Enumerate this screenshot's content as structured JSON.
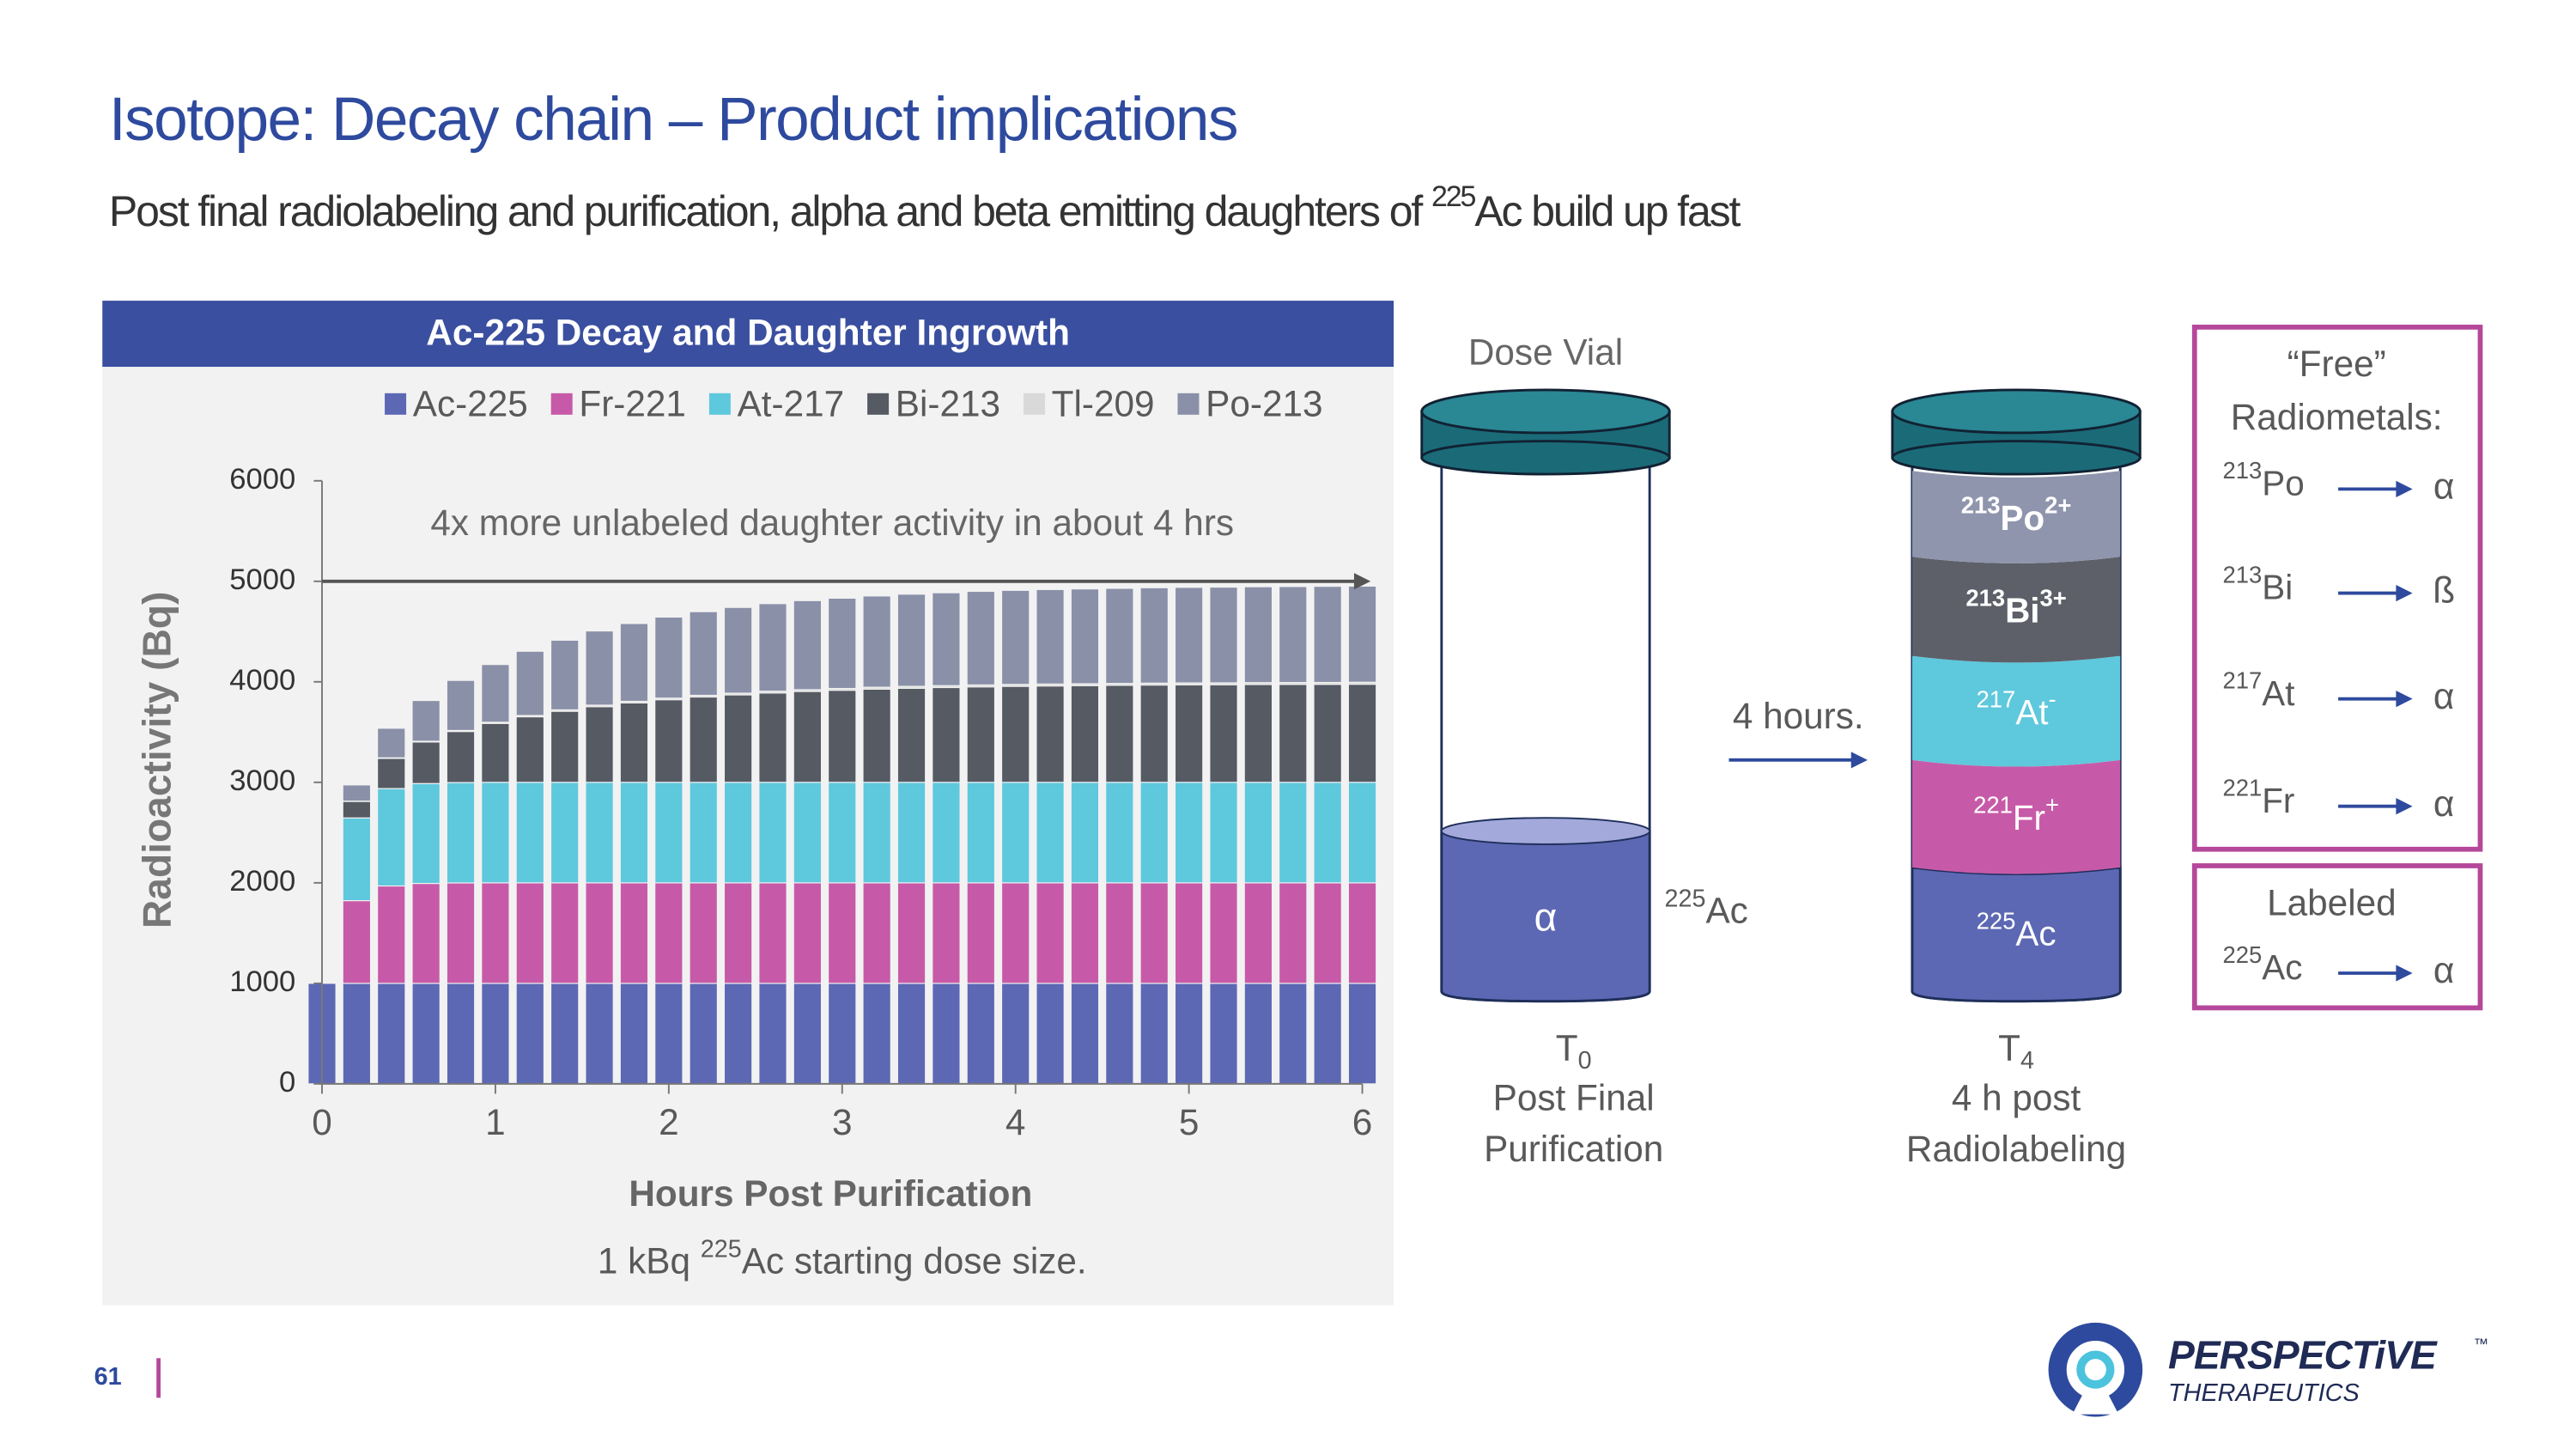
{
  "header": {
    "title": "Isotope: Decay chain – Product implications",
    "subtitle": {
      "text": "Post final radiolabeling and purification, alpha and beta emitting daughters of ",
      "sup": "225",
      "text_after": "Ac build up fast"
    }
  },
  "chart_data": {
    "type": "bar",
    "stacked": true,
    "title": "Ac-225 Decay and Daughter Ingrowth",
    "xlabel": "Hours Post Purification",
    "ylabel": "Radioactivity (Bq)",
    "annotation": "4x more unlabeled daughter activity in about 4 hrs",
    "footnote": {
      "text": "1 kBq ",
      "sup": "225",
      "text_after": "Ac starting dose size."
    },
    "x": [
      0,
      0.2,
      0.4,
      0.6,
      0.8,
      1,
      1.2,
      1.4,
      1.6,
      1.8,
      2,
      2.2,
      2.4,
      2.6,
      2.8,
      3,
      3.2,
      3.4,
      3.6,
      3.8,
      4,
      4.2,
      4.4,
      4.6,
      4.8,
      5,
      5.2,
      5.4,
      5.6,
      5.8,
      6
    ],
    "xlim": [
      0,
      6
    ],
    "xticks": [
      0,
      1,
      2,
      3,
      4,
      5,
      6
    ],
    "ylim": [
      0,
      6000
    ],
    "yticks": [
      0,
      1000,
      2000,
      3000,
      4000,
      5000,
      6000
    ],
    "legend": "top",
    "series": [
      {
        "name": "Ac-225",
        "color": "#5c68b4",
        "values": [
          1000,
          1000,
          1000,
          1000,
          1000,
          1000,
          1000,
          1000,
          1000,
          1000,
          1000,
          1000,
          1000,
          1000,
          1000,
          1000,
          1000,
          1000,
          1000,
          1000,
          1000,
          1000,
          1000,
          1000,
          1000,
          1000,
          1000,
          1000,
          1000,
          1000,
          1000
        ]
      },
      {
        "name": "Fr-221",
        "color": "#c75aa8",
        "values": [
          0,
          823,
          969,
          994,
          999,
          1000,
          1000,
          1000,
          1000,
          1000,
          1000,
          1000,
          1000,
          1000,
          1000,
          1000,
          1000,
          1000,
          1000,
          1000,
          1000,
          1000,
          1000,
          1000,
          1000,
          1000,
          1000,
          1000,
          1000,
          1000,
          1000
        ]
      },
      {
        "name": "At-217",
        "color": "#5ec8dd",
        "values": [
          0,
          823,
          969,
          994,
          999,
          1000,
          1000,
          1000,
          1000,
          1000,
          1000,
          1000,
          1000,
          1000,
          1000,
          1000,
          1000,
          1000,
          1000,
          1000,
          1000,
          1000,
          1000,
          1000,
          1000,
          1000,
          1000,
          1000,
          1000,
          1000,
          1000
        ]
      },
      {
        "name": "Bi-213",
        "color": "#555a63",
        "values": [
          0,
          164,
          300,
          413,
          508,
          586,
          652,
          707,
          753,
          790,
          822,
          849,
          870,
          889,
          904,
          916,
          927,
          936,
          943,
          950,
          955,
          959,
          962,
          965,
          968,
          970,
          971,
          973,
          974,
          975,
          976
        ]
      },
      {
        "name": "Tl-209",
        "color": "#d9d9d9",
        "values": [
          0,
          3,
          6,
          8,
          10,
          12,
          13,
          14,
          15,
          16,
          16,
          17,
          17,
          18,
          18,
          18,
          19,
          19,
          19,
          19,
          19,
          19,
          19,
          19,
          19,
          19,
          19,
          19,
          19,
          19,
          20
        ]
      },
      {
        "name": "Po-213",
        "color": "#8a90a8",
        "values": [
          0,
          161,
          294,
          405,
          498,
          574,
          639,
          693,
          738,
          774,
          806,
          832,
          853,
          871,
          886,
          898,
          908,
          917,
          924,
          931,
          936,
          940,
          943,
          946,
          949,
          951,
          952,
          954,
          955,
          956,
          956
        ]
      }
    ]
  },
  "diagram": {
    "vial_label": "Dose Vial",
    "transition": "4 hours.",
    "vials": [
      {
        "time": {
          "base": "T",
          "sub": "0"
        },
        "caption": [
          "Post Final",
          "Purification"
        ],
        "layers": [
          {
            "base": "α"
          }
        ],
        "side_label": {
          "sup": "225",
          "base": "Ac"
        }
      },
      {
        "time": {
          "base": "T",
          "sub": "4"
        },
        "caption": [
          "4 h post",
          "Radiolabeling"
        ],
        "layers": [
          {
            "sup": "225",
            "base": "Ac"
          },
          {
            "sup": "221",
            "base": "Fr",
            "charge": "+"
          },
          {
            "sup": "217",
            "base": "At",
            "charge": "-"
          },
          {
            "sup": "213",
            "base": "Bi",
            "charge": "3+"
          },
          {
            "sup": "213",
            "base": "Po",
            "charge": "2+"
          }
        ]
      }
    ],
    "free_box": {
      "title": [
        "“Free”",
        "Radiometals:"
      ],
      "rows": [
        {
          "sup": "213",
          "base": "Po",
          "emission": "α"
        },
        {
          "sup": "213",
          "base": "Bi",
          "emission": "ß"
        },
        {
          "sup": "217",
          "base": "At",
          "emission": "α"
        },
        {
          "sup": "221",
          "base": "Fr",
          "emission": "α"
        }
      ]
    },
    "labeled_box": {
      "title": "Labeled",
      "rows": [
        {
          "sup": "225",
          "base": "Ac",
          "emission": "α"
        }
      ]
    }
  },
  "footer": {
    "page": "61",
    "logo": {
      "name": "PERSPECTiVE",
      "tm": "™",
      "tagline": "THERAPEUTICS"
    }
  }
}
